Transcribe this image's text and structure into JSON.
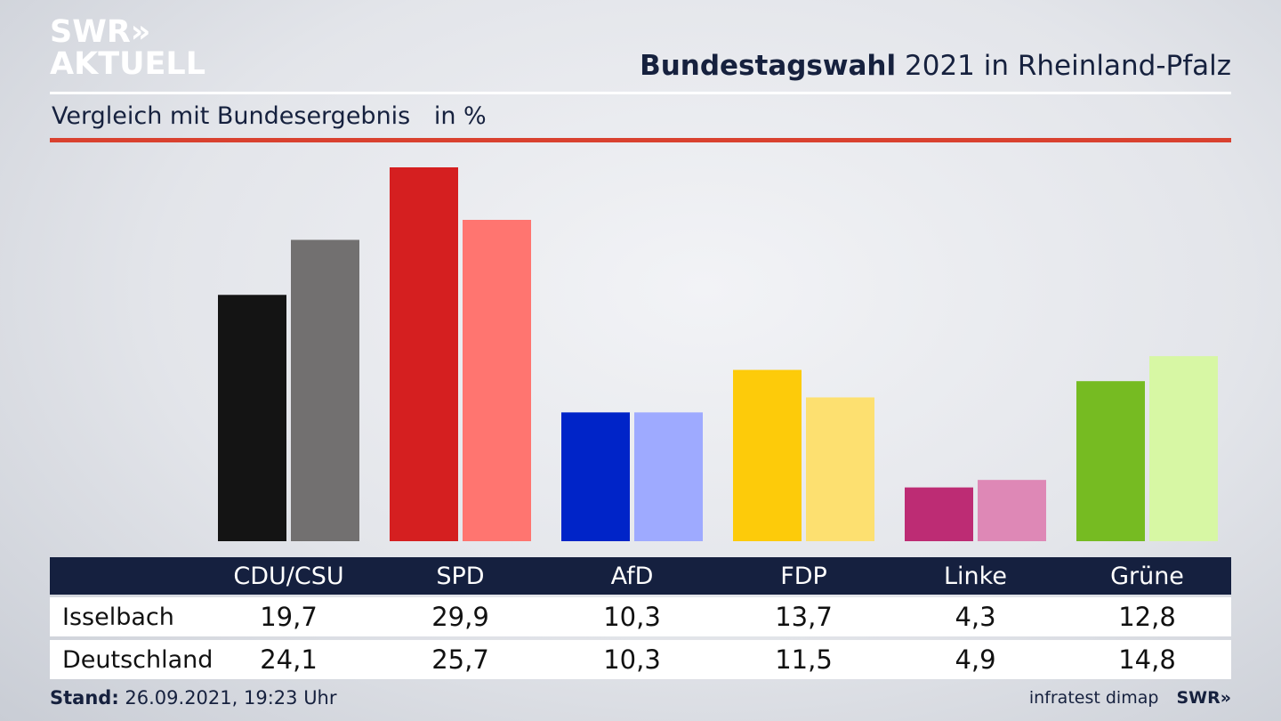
{
  "logo": {
    "line1": "SWR»",
    "line2": "AKTUELL"
  },
  "header": {
    "title_bold": "Bundestagswahl",
    "title_rest": "2021 in Rheinland-Pfalz",
    "subtitle": "Vergleich mit Bundesergebnis",
    "unit": "in %"
  },
  "chart_data": {
    "type": "bar",
    "categories": [
      "CDU/CSU",
      "SPD",
      "AfD",
      "FDP",
      "Linke",
      "Grüne"
    ],
    "series": [
      {
        "name": "Isselbach",
        "values": [
          19.7,
          29.9,
          10.3,
          13.7,
          4.3,
          12.8
        ]
      },
      {
        "name": "Deutschland",
        "values": [
          24.1,
          25.7,
          10.3,
          11.5,
          4.9,
          14.8
        ]
      }
    ],
    "colors": {
      "Isselbach": [
        "#141414",
        "#d51f20",
        "#0024c8",
        "#fdcb0a",
        "#bd2c74",
        "#76bb22"
      ],
      "Deutschland": [
        "#727070",
        "#ff7570",
        "#9eaaff",
        "#fde070",
        "#de88b6",
        "#d7f7a4"
      ]
    },
    "ylim": [
      0,
      30
    ],
    "grid": false,
    "legend": "table-below"
  },
  "table": {
    "rows": [
      {
        "label": "Isselbach",
        "values": [
          "19,7",
          "29,9",
          "10,3",
          "13,7",
          "4,3",
          "12,8"
        ]
      },
      {
        "label": "Deutschland",
        "values": [
          "24,1",
          "25,7",
          "10,3",
          "11,5",
          "4,9",
          "14,8"
        ]
      }
    ]
  },
  "footer": {
    "stand_label": "Stand:",
    "stand_value": "26.09.2021, 19:23 Uhr",
    "source": "infratest dimap",
    "brand": "SWR»"
  }
}
